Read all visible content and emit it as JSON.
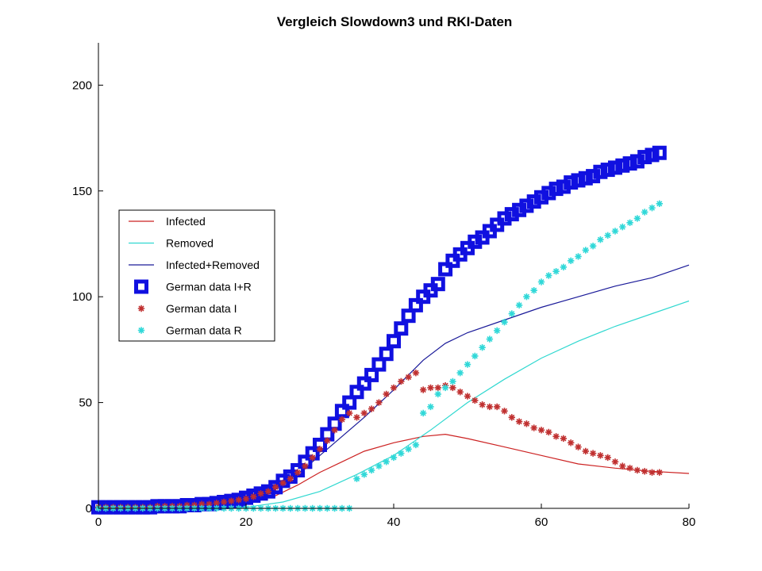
{
  "chart_data": {
    "type": "line",
    "title": "Vergleich Slowdown3 und RKI-Daten",
    "xlabel": "",
    "ylabel": "",
    "xlim": [
      0,
      80
    ],
    "ylim": [
      0,
      220
    ],
    "xticks": [
      0,
      20,
      40,
      60,
      80
    ],
    "yticks": [
      0,
      50,
      100,
      150,
      200
    ],
    "grid": false,
    "legend_position": "left-middle",
    "series": [
      {
        "name": "Infected",
        "style": "line",
        "color": "#cc2222",
        "x": [
          0,
          10,
          15,
          20,
          24,
          27,
          30,
          33,
          36,
          40,
          44,
          47,
          50,
          55,
          60,
          65,
          70,
          75,
          80
        ],
        "y": [
          0,
          0.5,
          1,
          3,
          6,
          11,
          17,
          22,
          27,
          31,
          34,
          35,
          33,
          29,
          25,
          21,
          19,
          17.5,
          16.5
        ]
      },
      {
        "name": "Removed",
        "style": "line",
        "color": "#30d8d0",
        "x": [
          0,
          15,
          20,
          25,
          30,
          35,
          40,
          45,
          50,
          55,
          60,
          65,
          70,
          75,
          80
        ],
        "y": [
          0,
          0,
          0.5,
          3,
          8,
          16,
          25,
          37,
          50,
          61,
          71,
          79,
          86,
          92,
          98
        ]
      },
      {
        "name": "Infected+Removed",
        "style": "line",
        "color": "#1a1a99",
        "x": [
          0,
          10,
          15,
          20,
          22,
          25,
          28,
          30,
          33,
          36,
          40,
          44,
          47,
          50,
          55,
          60,
          65,
          70,
          75,
          80
        ],
        "y": [
          0,
          0.5,
          1,
          3,
          5,
          11,
          19,
          25,
          34,
          43,
          56,
          70,
          78,
          83,
          89,
          95,
          100,
          105,
          109,
          115
        ]
      },
      {
        "name": "German data I+R",
        "style": "square",
        "color": "#1010e0",
        "x": [
          0,
          1,
          2,
          3,
          4,
          5,
          6,
          7,
          8,
          9,
          10,
          11,
          12,
          13,
          14,
          15,
          16,
          17,
          18,
          19,
          20,
          21,
          22,
          23,
          24,
          25,
          26,
          27,
          28,
          29,
          30,
          31,
          32,
          33,
          34,
          35,
          36,
          37,
          38,
          39,
          40,
          41,
          42,
          43,
          44,
          45,
          46,
          47,
          48,
          49,
          50,
          51,
          52,
          53,
          54,
          55,
          56,
          57,
          58,
          59,
          60,
          61,
          62,
          63,
          64,
          65,
          66,
          67,
          68,
          69,
          70,
          71,
          72,
          73,
          74,
          75,
          76
        ],
        "y": [
          0.5,
          0.5,
          0.5,
          0.5,
          0.5,
          0.5,
          0.5,
          0.5,
          1,
          1,
          1,
          1,
          1.5,
          1.5,
          2,
          2,
          2.5,
          3,
          3.5,
          4,
          5,
          6,
          7,
          8,
          10,
          13,
          15,
          18,
          22,
          26,
          30,
          35,
          40,
          46,
          50,
          55,
          59,
          63,
          68,
          73,
          79,
          85,
          91,
          96,
          100,
          103,
          106,
          113,
          117,
          120,
          123,
          126,
          128,
          131,
          134,
          137,
          139,
          141,
          143,
          145,
          147,
          149,
          151,
          152,
          154,
          155,
          156,
          157,
          159,
          160,
          161,
          162,
          163,
          164,
          166,
          167,
          168
        ]
      },
      {
        "name": "German data I",
        "style": "asterisk",
        "color": "#c03030",
        "x": [
          0,
          1,
          2,
          3,
          4,
          5,
          6,
          7,
          8,
          9,
          10,
          11,
          12,
          13,
          14,
          15,
          16,
          17,
          18,
          19,
          20,
          21,
          22,
          23,
          24,
          25,
          26,
          27,
          28,
          29,
          30,
          31,
          32,
          33,
          34,
          35,
          36,
          37,
          38,
          39,
          40,
          41,
          42,
          43,
          44,
          45,
          46,
          47,
          48,
          49,
          50,
          51,
          52,
          53,
          54,
          55,
          56,
          57,
          58,
          59,
          60,
          61,
          62,
          63,
          64,
          65,
          66,
          67,
          68,
          69,
          70,
          71,
          72,
          73,
          74,
          75,
          76
        ],
        "y": [
          0.5,
          0.5,
          0.5,
          0.5,
          0.5,
          0.5,
          0.5,
          0.5,
          1,
          1,
          1,
          1,
          1.5,
          1.5,
          2,
          2,
          2.5,
          3,
          3.5,
          4,
          4.5,
          5.5,
          7,
          8,
          10,
          12,
          14,
          17,
          20,
          24,
          28,
          32,
          37,
          42,
          45,
          43,
          45,
          47,
          50,
          54,
          57,
          60,
          62,
          64,
          56,
          57,
          57,
          58,
          57,
          55,
          53,
          51,
          49,
          48,
          48,
          46,
          43,
          41,
          40,
          38,
          37,
          36,
          34,
          33,
          31,
          29,
          27,
          26,
          25,
          24,
          22,
          20,
          19,
          18,
          17.5,
          17,
          17
        ]
      },
      {
        "name": "German data R",
        "style": "asterisk",
        "color": "#30d8d8",
        "x": [
          0,
          1,
          2,
          3,
          4,
          5,
          6,
          7,
          8,
          9,
          10,
          11,
          12,
          13,
          14,
          15,
          16,
          17,
          18,
          19,
          20,
          21,
          22,
          23,
          24,
          25,
          26,
          27,
          28,
          29,
          30,
          31,
          32,
          33,
          34,
          35,
          36,
          37,
          38,
          39,
          40,
          41,
          42,
          43,
          44,
          45,
          46,
          47,
          48,
          49,
          50,
          51,
          52,
          53,
          54,
          55,
          56,
          57,
          58,
          59,
          60,
          61,
          62,
          63,
          64,
          65,
          66,
          67,
          68,
          69,
          70,
          71,
          72,
          73,
          74,
          75,
          76
        ],
        "y": [
          0,
          0,
          0,
          0,
          0,
          0,
          0,
          0,
          0,
          0,
          0,
          0,
          0,
          0,
          0,
          0,
          0,
          0,
          0,
          0,
          0,
          0,
          0,
          0,
          0,
          0,
          0,
          0,
          0,
          0,
          0,
          0,
          0,
          0,
          0,
          14,
          16,
          18,
          20,
          22,
          24,
          26,
          28,
          30,
          45,
          48,
          54,
          57,
          60,
          64,
          68,
          72,
          76,
          80,
          84,
          88,
          92,
          96,
          100,
          103,
          107,
          110,
          112,
          114,
          117,
          119,
          122,
          124,
          127,
          129,
          131,
          133,
          135,
          137,
          140,
          142,
          144
        ]
      }
    ]
  }
}
